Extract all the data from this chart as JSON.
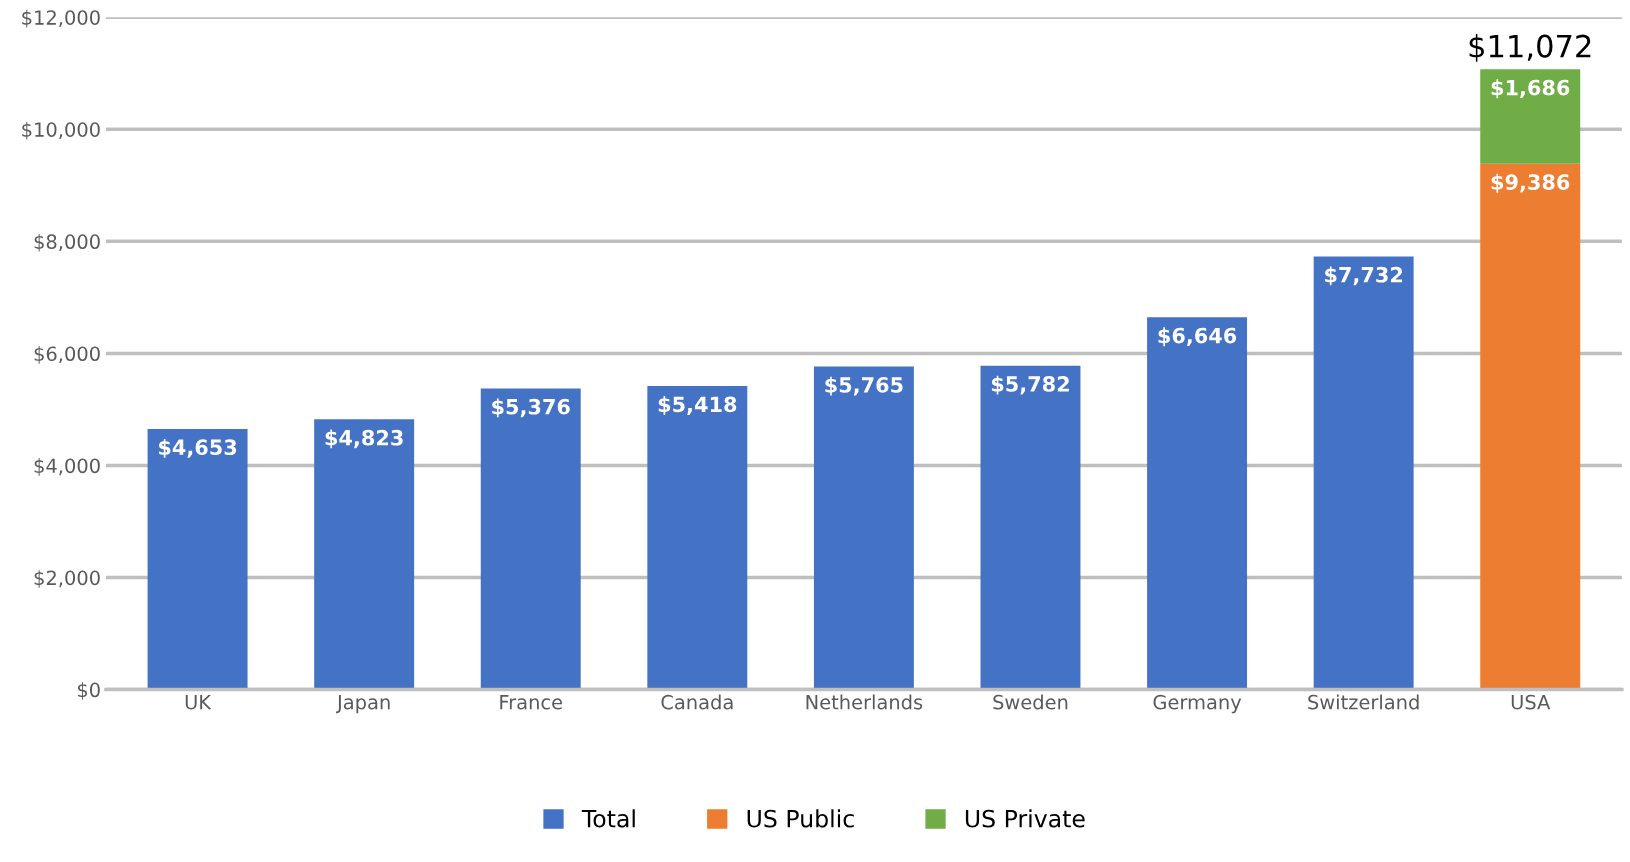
{
  "chart_data": {
    "type": "bar",
    "stacked": true,
    "categories": [
      "UK",
      "Japan",
      "France",
      "Canada",
      "Netherlands",
      "Sweden",
      "Germany",
      "Switzerland",
      "USA"
    ],
    "series": [
      {
        "name": "Total",
        "color": "#4472c4",
        "values": [
          4653,
          4823,
          5376,
          5418,
          5765,
          5782,
          6646,
          7732,
          null
        ],
        "value_labels": [
          "$4,653",
          "$4,823",
          "$5,376",
          "$5,418",
          "$5,765",
          "$5,782",
          "$6,646",
          "$7,732",
          null
        ]
      },
      {
        "name": "US Public",
        "color": "#ed7d31",
        "values": [
          null,
          null,
          null,
          null,
          null,
          null,
          null,
          null,
          9386
        ],
        "value_labels": [
          null,
          null,
          null,
          null,
          null,
          null,
          null,
          null,
          "$9,386"
        ]
      },
      {
        "name": "US Private",
        "color": "#70ad47",
        "values": [
          null,
          null,
          null,
          null,
          null,
          null,
          null,
          null,
          1686
        ],
        "value_labels": [
          null,
          null,
          null,
          null,
          null,
          null,
          null,
          null,
          "$1,686"
        ]
      }
    ],
    "totals": [
      null,
      null,
      null,
      null,
      null,
      null,
      null,
      null,
      "$11,072"
    ],
    "ylim": [
      0,
      12000
    ],
    "yticks": [
      {
        "value": 0,
        "label": "$0"
      },
      {
        "value": 2000,
        "label": "$2,000"
      },
      {
        "value": 4000,
        "label": "$4,000"
      },
      {
        "value": 6000,
        "label": "$6,000"
      },
      {
        "value": 8000,
        "label": "$8,000"
      },
      {
        "value": 10000,
        "label": "$10,000"
      },
      {
        "value": 12000,
        "label": "$12,000"
      }
    ],
    "grid": "y",
    "legend": "bottom"
  }
}
